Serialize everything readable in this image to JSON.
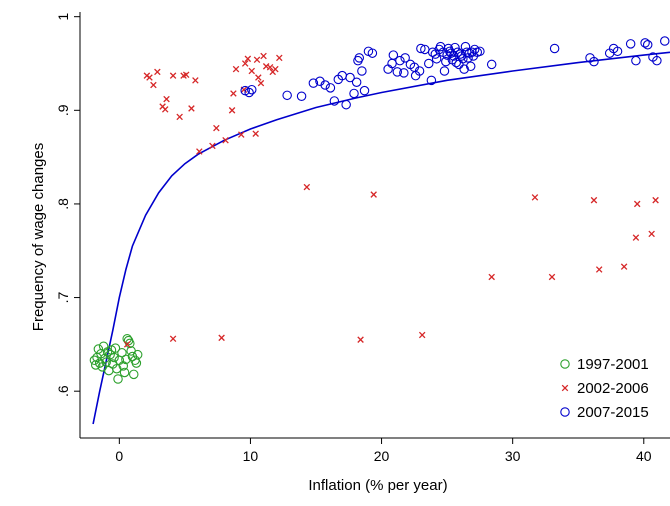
{
  "chart_data": {
    "type": "scatter",
    "title": "",
    "xlabel": "Inflation (% per year)",
    "ylabel": "Frequency of wage changes",
    "xlim": [
      -3,
      42
    ],
    "ylim": [
      0.55,
      1.005
    ],
    "x_ticks": [
      0,
      10,
      20,
      30,
      40
    ],
    "y_ticks": [
      0.6,
      0.7,
      0.8,
      0.9,
      1.0
    ],
    "y_tick_labels": [
      ".6",
      ".7",
      ".8",
      ".9",
      "1"
    ],
    "grid": false,
    "legend_position": "bottom-right",
    "series": [
      {
        "name": "1997-2001",
        "marker": "circle",
        "color": "#2ca02c",
        "points": [
          [
            -1.9,
            0.633
          ],
          [
            -1.8,
            0.628
          ],
          [
            -1.7,
            0.636
          ],
          [
            -1.6,
            0.645
          ],
          [
            -1.5,
            0.63
          ],
          [
            -1.4,
            0.64
          ],
          [
            -1.3,
            0.626
          ],
          [
            -1.2,
            0.648
          ],
          [
            -1.1,
            0.635
          ],
          [
            -1.0,
            0.631
          ],
          [
            -0.9,
            0.642
          ],
          [
            -0.8,
            0.622
          ],
          [
            -0.7,
            0.639
          ],
          [
            -0.6,
            0.644
          ],
          [
            -0.5,
            0.629
          ],
          [
            -0.4,
            0.636
          ],
          [
            -0.3,
            0.646
          ],
          [
            -0.2,
            0.624
          ],
          [
            -0.1,
            0.613
          ],
          [
            0.0,
            0.633
          ],
          [
            0.2,
            0.641
          ],
          [
            0.3,
            0.627
          ],
          [
            0.4,
            0.62
          ],
          [
            0.5,
            0.634
          ],
          [
            0.6,
            0.656
          ],
          [
            0.7,
            0.654
          ],
          [
            0.8,
            0.651
          ],
          [
            0.9,
            0.643
          ],
          [
            1.0,
            0.637
          ],
          [
            1.1,
            0.618
          ],
          [
            1.2,
            0.633
          ],
          [
            1.3,
            0.63
          ],
          [
            1.4,
            0.639
          ]
        ]
      },
      {
        "name": "2002-2006",
        "marker": "x",
        "color": "#d62728",
        "points": [
          [
            0.6,
            0.65
          ],
          [
            2.1,
            0.937
          ],
          [
            2.3,
            0.935
          ],
          [
            2.6,
            0.927
          ],
          [
            2.9,
            0.941
          ],
          [
            3.3,
            0.904
          ],
          [
            3.5,
            0.901
          ],
          [
            3.6,
            0.912
          ],
          [
            4.1,
            0.937
          ],
          [
            4.1,
            0.656
          ],
          [
            4.6,
            0.893
          ],
          [
            4.9,
            0.937
          ],
          [
            5.1,
            0.938
          ],
          [
            5.5,
            0.902
          ],
          [
            5.8,
            0.932
          ],
          [
            6.1,
            0.856
          ],
          [
            7.1,
            0.862
          ],
          [
            7.4,
            0.881
          ],
          [
            7.8,
            0.657
          ],
          [
            8.1,
            0.868
          ],
          [
            8.6,
            0.9
          ],
          [
            8.7,
            0.918
          ],
          [
            8.9,
            0.944
          ],
          [
            9.3,
            0.874
          ],
          [
            9.5,
            0.922
          ],
          [
            9.6,
            0.95
          ],
          [
            9.8,
            0.955
          ],
          [
            10.1,
            0.942
          ],
          [
            10.4,
            0.875
          ],
          [
            10.5,
            0.954
          ],
          [
            10.6,
            0.935
          ],
          [
            10.8,
            0.929
          ],
          [
            11.0,
            0.958
          ],
          [
            11.2,
            0.947
          ],
          [
            11.5,
            0.946
          ],
          [
            11.7,
            0.941
          ],
          [
            11.9,
            0.944
          ],
          [
            12.2,
            0.956
          ],
          [
            14.3,
            0.818
          ],
          [
            18.4,
            0.655
          ],
          [
            19.4,
            0.81
          ],
          [
            23.1,
            0.66
          ],
          [
            28.4,
            0.722
          ],
          [
            31.7,
            0.807
          ],
          [
            33.0,
            0.722
          ],
          [
            36.2,
            0.804
          ],
          [
            36.6,
            0.73
          ],
          [
            38.5,
            0.733
          ],
          [
            39.4,
            0.764
          ],
          [
            39.5,
            0.8
          ],
          [
            40.6,
            0.768
          ],
          [
            40.9,
            0.804
          ]
        ]
      },
      {
        "name": "2007-2015",
        "marker": "circle",
        "color": "#0000cc",
        "points": [
          [
            9.6,
            0.921
          ],
          [
            9.9,
            0.919
          ],
          [
            10.1,
            0.922
          ],
          [
            12.8,
            0.916
          ],
          [
            13.9,
            0.915
          ],
          [
            14.8,
            0.929
          ],
          [
            15.3,
            0.931
          ],
          [
            15.7,
            0.927
          ],
          [
            16.1,
            0.924
          ],
          [
            16.4,
            0.91
          ],
          [
            16.7,
            0.933
          ],
          [
            17.0,
            0.937
          ],
          [
            17.3,
            0.906
          ],
          [
            17.6,
            0.935
          ],
          [
            17.9,
            0.918
          ],
          [
            18.1,
            0.93
          ],
          [
            18.2,
            0.953
          ],
          [
            18.3,
            0.956
          ],
          [
            18.5,
            0.942
          ],
          [
            18.7,
            0.921
          ],
          [
            19.0,
            0.963
          ],
          [
            19.3,
            0.961
          ],
          [
            20.5,
            0.944
          ],
          [
            20.8,
            0.95
          ],
          [
            20.9,
            0.959
          ],
          [
            21.2,
            0.941
          ],
          [
            21.4,
            0.953
          ],
          [
            21.7,
            0.94
          ],
          [
            21.8,
            0.956
          ],
          [
            22.2,
            0.949
          ],
          [
            22.5,
            0.946
          ],
          [
            22.6,
            0.937
          ],
          [
            22.9,
            0.942
          ],
          [
            23.0,
            0.966
          ],
          [
            23.3,
            0.965
          ],
          [
            23.6,
            0.95
          ],
          [
            23.8,
            0.932
          ],
          [
            23.9,
            0.962
          ],
          [
            24.1,
            0.96
          ],
          [
            24.2,
            0.955
          ],
          [
            24.4,
            0.965
          ],
          [
            24.5,
            0.968
          ],
          [
            24.7,
            0.962
          ],
          [
            24.8,
            0.942
          ],
          [
            24.9,
            0.952
          ],
          [
            25.0,
            0.959
          ],
          [
            25.1,
            0.966
          ],
          [
            25.2,
            0.963
          ],
          [
            25.3,
            0.961
          ],
          [
            25.4,
            0.954
          ],
          [
            25.5,
            0.958
          ],
          [
            25.6,
            0.967
          ],
          [
            25.7,
            0.951
          ],
          [
            25.8,
            0.962
          ],
          [
            25.9,
            0.949
          ],
          [
            26.0,
            0.96
          ],
          [
            26.1,
            0.958
          ],
          [
            26.2,
            0.955
          ],
          [
            26.3,
            0.944
          ],
          [
            26.4,
            0.968
          ],
          [
            26.5,
            0.962
          ],
          [
            26.6,
            0.956
          ],
          [
            26.7,
            0.961
          ],
          [
            26.8,
            0.947
          ],
          [
            26.9,
            0.962
          ],
          [
            27.0,
            0.958
          ],
          [
            27.1,
            0.965
          ],
          [
            27.3,
            0.962
          ],
          [
            27.5,
            0.963
          ],
          [
            28.4,
            0.949
          ],
          [
            33.2,
            0.966
          ],
          [
            35.9,
            0.956
          ],
          [
            36.2,
            0.952
          ],
          [
            37.4,
            0.961
          ],
          [
            37.7,
            0.966
          ],
          [
            38.0,
            0.963
          ],
          [
            39.0,
            0.971
          ],
          [
            39.4,
            0.953
          ],
          [
            40.1,
            0.972
          ],
          [
            40.3,
            0.97
          ],
          [
            40.7,
            0.957
          ],
          [
            41.0,
            0.953
          ],
          [
            41.6,
            0.974
          ]
        ]
      }
    ],
    "fit_curve": {
      "color": "#0000cc",
      "points": [
        [
          -2.0,
          0.565
        ],
        [
          -1.5,
          0.6
        ],
        [
          -1.0,
          0.632
        ],
        [
          -0.5,
          0.665
        ],
        [
          0.0,
          0.7
        ],
        [
          0.5,
          0.73
        ],
        [
          1.0,
          0.755
        ],
        [
          2.0,
          0.788
        ],
        [
          3.0,
          0.812
        ],
        [
          4.0,
          0.83
        ],
        [
          5.0,
          0.843
        ],
        [
          6.0,
          0.853
        ],
        [
          8.0,
          0.868
        ],
        [
          10.0,
          0.88
        ],
        [
          12.0,
          0.89
        ],
        [
          15.0,
          0.903
        ],
        [
          18.0,
          0.913
        ],
        [
          20.0,
          0.919
        ],
        [
          25.0,
          0.932
        ],
        [
          30.0,
          0.942
        ],
        [
          35.0,
          0.951
        ],
        [
          40.0,
          0.959
        ],
        [
          42.0,
          0.962
        ]
      ]
    }
  }
}
